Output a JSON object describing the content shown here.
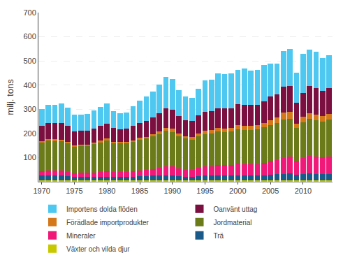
{
  "chart_data": {
    "type": "bar",
    "stacked": true,
    "ylabel": "milj. tons",
    "categories": [
      "1970",
      null,
      null,
      null,
      null,
      "1975",
      null,
      null,
      null,
      null,
      "1980",
      null,
      null,
      null,
      null,
      "1985",
      null,
      null,
      null,
      null,
      "1990",
      null,
      null,
      null,
      null,
      "1995",
      null,
      null,
      null,
      null,
      "2000",
      null,
      null,
      null,
      null,
      "2005",
      null,
      null,
      null,
      null,
      "2010",
      null,
      null,
      null,
      null
    ],
    "series": [
      {
        "name": "Växter och vilda djur",
        "color": "#C8C800",
        "values": [
          5,
          5,
          5,
          5,
          5,
          5,
          5,
          5,
          5,
          5,
          5,
          5,
          5,
          5,
          5,
          5,
          5,
          5,
          5,
          5,
          5,
          5,
          5,
          5,
          5,
          5,
          5,
          5,
          5,
          5,
          5,
          5,
          5,
          5,
          5,
          5,
          5,
          5,
          5,
          5,
          5,
          5,
          5,
          5,
          5
        ]
      },
      {
        "name": "Trä",
        "color": "#1A5A8A",
        "values": [
          20,
          20,
          20,
          20,
          18,
          16,
          16,
          16,
          16,
          16,
          16,
          15,
          15,
          15,
          16,
          18,
          18,
          20,
          22,
          22,
          22,
          18,
          16,
          16,
          18,
          20,
          20,
          22,
          20,
          20,
          22,
          20,
          20,
          20,
          22,
          25,
          27,
          28,
          30,
          25,
          28,
          30,
          27,
          27,
          28
        ]
      },
      {
        "name": "Mineraler",
        "color": "#F01878",
        "values": [
          18,
          20,
          22,
          20,
          18,
          15,
          16,
          16,
          16,
          20,
          22,
          20,
          20,
          20,
          22,
          23,
          25,
          27,
          30,
          36,
          36,
          32,
          29,
          29,
          36,
          40,
          40,
          43,
          43,
          43,
          47,
          47,
          47,
          47,
          50,
          55,
          58,
          65,
          68,
          54,
          65,
          72,
          72,
          68,
          72
        ]
      },
      {
        "name": "Jordmaterial",
        "color": "#6B7B1A",
        "values": [
          120,
          125,
          122,
          122,
          118,
          110,
          112,
          112,
          118,
          122,
          128,
          120,
          118,
          118,
          122,
          128,
          130,
          135,
          140,
          148,
          143,
          132,
          128,
          125,
          130,
          133,
          135,
          138,
          138,
          140,
          143,
          143,
          143,
          145,
          148,
          150,
          152,
          160,
          158,
          138,
          148,
          153,
          150,
          150,
          152
        ]
      },
      {
        "name": "Förädlade importprodukter",
        "color": "#D4781A",
        "values": [
          5,
          6,
          7,
          7,
          6,
          5,
          5,
          5,
          6,
          7,
          7,
          6,
          6,
          6,
          7,
          7,
          8,
          9,
          10,
          12,
          13,
          12,
          10,
          10,
          12,
          13,
          13,
          15,
          15,
          15,
          17,
          17,
          17,
          17,
          18,
          21,
          24,
          27,
          27,
          18,
          23,
          24,
          23,
          23,
          24
        ]
      },
      {
        "name": "Oanvänt uttag",
        "color": "#7B1040",
        "values": [
          62,
          68,
          68,
          70,
          66,
          58,
          56,
          56,
          58,
          60,
          63,
          56,
          53,
          56,
          60,
          63,
          66,
          70,
          76,
          82,
          80,
          73,
          68,
          66,
          73,
          78,
          78,
          82,
          82,
          82,
          87,
          87,
          85,
          85,
          89,
          97,
          97,
          107,
          107,
          87,
          97,
          112,
          112,
          102,
          107
        ]
      },
      {
        "name": "Importens dolda flöden",
        "color": "#4EC8F0",
        "values": [
          72,
          73,
          75,
          80,
          76,
          68,
          67,
          70,
          76,
          80,
          82,
          70,
          67,
          67,
          80,
          92,
          100,
          106,
          118,
          130,
          125,
          106,
          97,
          97,
          112,
          130,
          130,
          143,
          143,
          143,
          143,
          150,
          143,
          143,
          150,
          137,
          125,
          150,
          156,
          125,
          162,
          150,
          150,
          137,
          137
        ]
      }
    ],
    "ylim": [
      0,
      700
    ],
    "yticks": [
      100,
      200,
      300,
      400,
      500,
      600,
      700
    ],
    "grid": true,
    "legend": "bottom"
  }
}
